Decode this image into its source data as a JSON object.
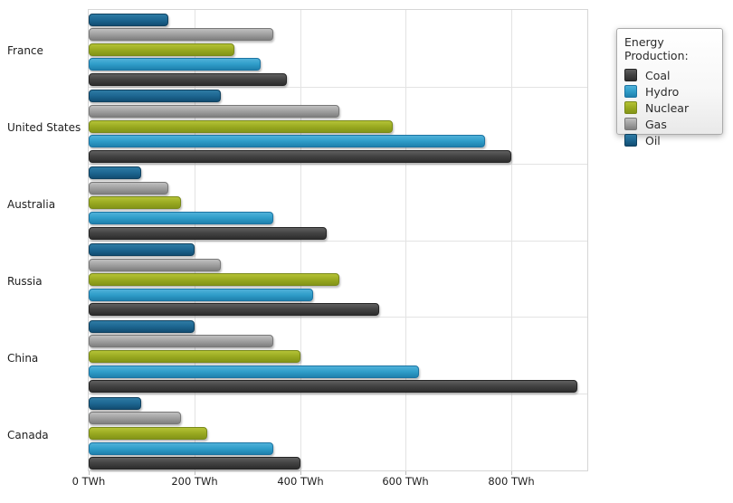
{
  "legend": {
    "title": "Energy Production:"
  },
  "chart_data": {
    "type": "bar",
    "orientation": "horizontal",
    "title": "",
    "xlabel": "",
    "ylabel": "",
    "legend_title": "Energy Production:",
    "legend_position": "top-right",
    "grid": "vertical value gridlines and horizontal category separators",
    "categories": [
      "France",
      "United States",
      "Australia",
      "Russia",
      "China",
      "Canada"
    ],
    "series": [
      {
        "name": "Coal",
        "values": [
          375,
          800,
          450,
          550,
          925,
          400
        ],
        "color": "#424242",
        "gradient": {
          "light": "#5f5f5f",
          "dark": "#2d2d2d",
          "border": "#252525"
        }
      },
      {
        "name": "Hydro",
        "values": [
          325,
          750,
          350,
          425,
          625,
          350
        ],
        "color": "#2f9dc9",
        "gradient": {
          "light": "#50b1d9",
          "dark": "#1f81ad",
          "border": "#1c74a2"
        }
      },
      {
        "name": "Nuclear",
        "values": [
          275,
          575,
          175,
          475,
          400,
          225
        ],
        "color": "#9aaa21",
        "gradient": {
          "light": "#b4c236",
          "dark": "#839417",
          "border": "#79891a"
        }
      },
      {
        "name": "Gas",
        "values": [
          350,
          475,
          150,
          250,
          350,
          175
        ],
        "color": "#a0a0a0",
        "gradient": {
          "light": "#c0c0c0",
          "dark": "#7f7f7f",
          "border": "#787878"
        }
      },
      {
        "name": "Oil",
        "values": [
          150,
          250,
          100,
          200,
          200,
          100
        ],
        "color": "#1d6691",
        "gradient": {
          "light": "#2e7ba4",
          "dark": "#124d73",
          "border": "#10415f"
        }
      }
    ],
    "bar_order_top_to_bottom": [
      "Oil",
      "Gas",
      "Nuclear",
      "Hydro",
      "Coal"
    ],
    "x_tick_values": [
      0,
      200,
      400,
      600,
      800
    ],
    "x_tick_labels": [
      "0 TWh",
      "200 TWh",
      "400 TWh",
      "600 TWh",
      "800 TWh"
    ],
    "xlim": [
      0,
      940
    ],
    "unit": "TWh"
  }
}
